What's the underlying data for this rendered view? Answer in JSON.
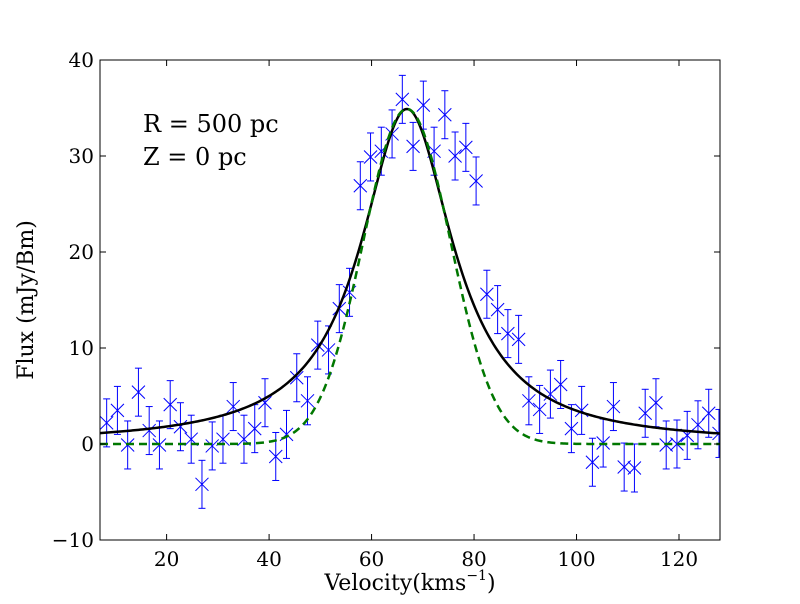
{
  "chart_data": {
    "type": "scatter",
    "title": "",
    "xlabel": "Velocity(kms",
    "xlabel_sup": "−1",
    "xlabel_close": ")",
    "ylabel": "Flux (mJy/Bm)",
    "xlim": [
      7,
      128
    ],
    "ylim": [
      -10,
      40
    ],
    "xticks": [
      20,
      40,
      60,
      80,
      100,
      120
    ],
    "yticks": [
      -10,
      0,
      10,
      20,
      30,
      40
    ],
    "xtick_labels": [
      "20",
      "40",
      "60",
      "80",
      "100",
      "120"
    ],
    "ytick_labels": [
      "−10",
      "0",
      "10",
      "20",
      "30",
      "40"
    ],
    "grid": false,
    "annotations": [
      "R = 500 pc",
      "Z = 0 pc"
    ],
    "colors": {
      "data": "#0000ff",
      "fit_solid": "#000000",
      "fit_dashed": "#007700"
    },
    "data_points": {
      "x": [
        8.3,
        10.4,
        12.4,
        14.5,
        16.6,
        18.6,
        20.7,
        22.7,
        24.8,
        26.9,
        28.9,
        31.0,
        33.0,
        35.1,
        37.2,
        39.2,
        41.3,
        43.4,
        45.4,
        47.5,
        49.5,
        51.6,
        53.7,
        55.7,
        57.8,
        59.8,
        61.9,
        64.0,
        66.0,
        68.1,
        70.1,
        72.2,
        74.3,
        76.3,
        78.4,
        80.4,
        82.5,
        84.6,
        86.6,
        88.7,
        90.7,
        92.8,
        94.9,
        96.9,
        99.0,
        101.0,
        103.1,
        105.2,
        107.2,
        109.3,
        111.3,
        113.4,
        115.5,
        117.5,
        119.6,
        121.6,
        123.7,
        125.8,
        127.8
      ],
      "y": [
        2.2,
        3.5,
        -0.1,
        5.4,
        1.4,
        -0.1,
        4.1,
        1.8,
        0.5,
        -4.2,
        -0.2,
        0.5,
        3.9,
        0.5,
        1.6,
        4.3,
        -1.3,
        1.0,
        6.9,
        4.5,
        10.3,
        9.8,
        14.1,
        15.8,
        26.9,
        29.9,
        30.5,
        32.3,
        35.9,
        31.0,
        35.3,
        30.5,
        34.3,
        30.0,
        30.9,
        27.4,
        15.6,
        14.0,
        11.5,
        10.9,
        4.5,
        3.6,
        5.2,
        6.2,
        1.6,
        3.5,
        -1.9,
        0.1,
        3.9,
        -2.4,
        -2.5,
        3.2,
        4.3,
        -0.1,
        0.0,
        0.9,
        2.0,
        3.2,
        1.1
      ],
      "yerr": 2.5
    },
    "fits": [
      {
        "style": "solid",
        "color": "#000000",
        "model": "lorentzian",
        "amplitude": 34.9,
        "center": 66.9,
        "hwhm": 11.0
      },
      {
        "style": "dashed",
        "color": "#007700",
        "model": "gaussian",
        "amplitude": 34.9,
        "center": 66.9,
        "sigma": 8.5
      }
    ]
  }
}
